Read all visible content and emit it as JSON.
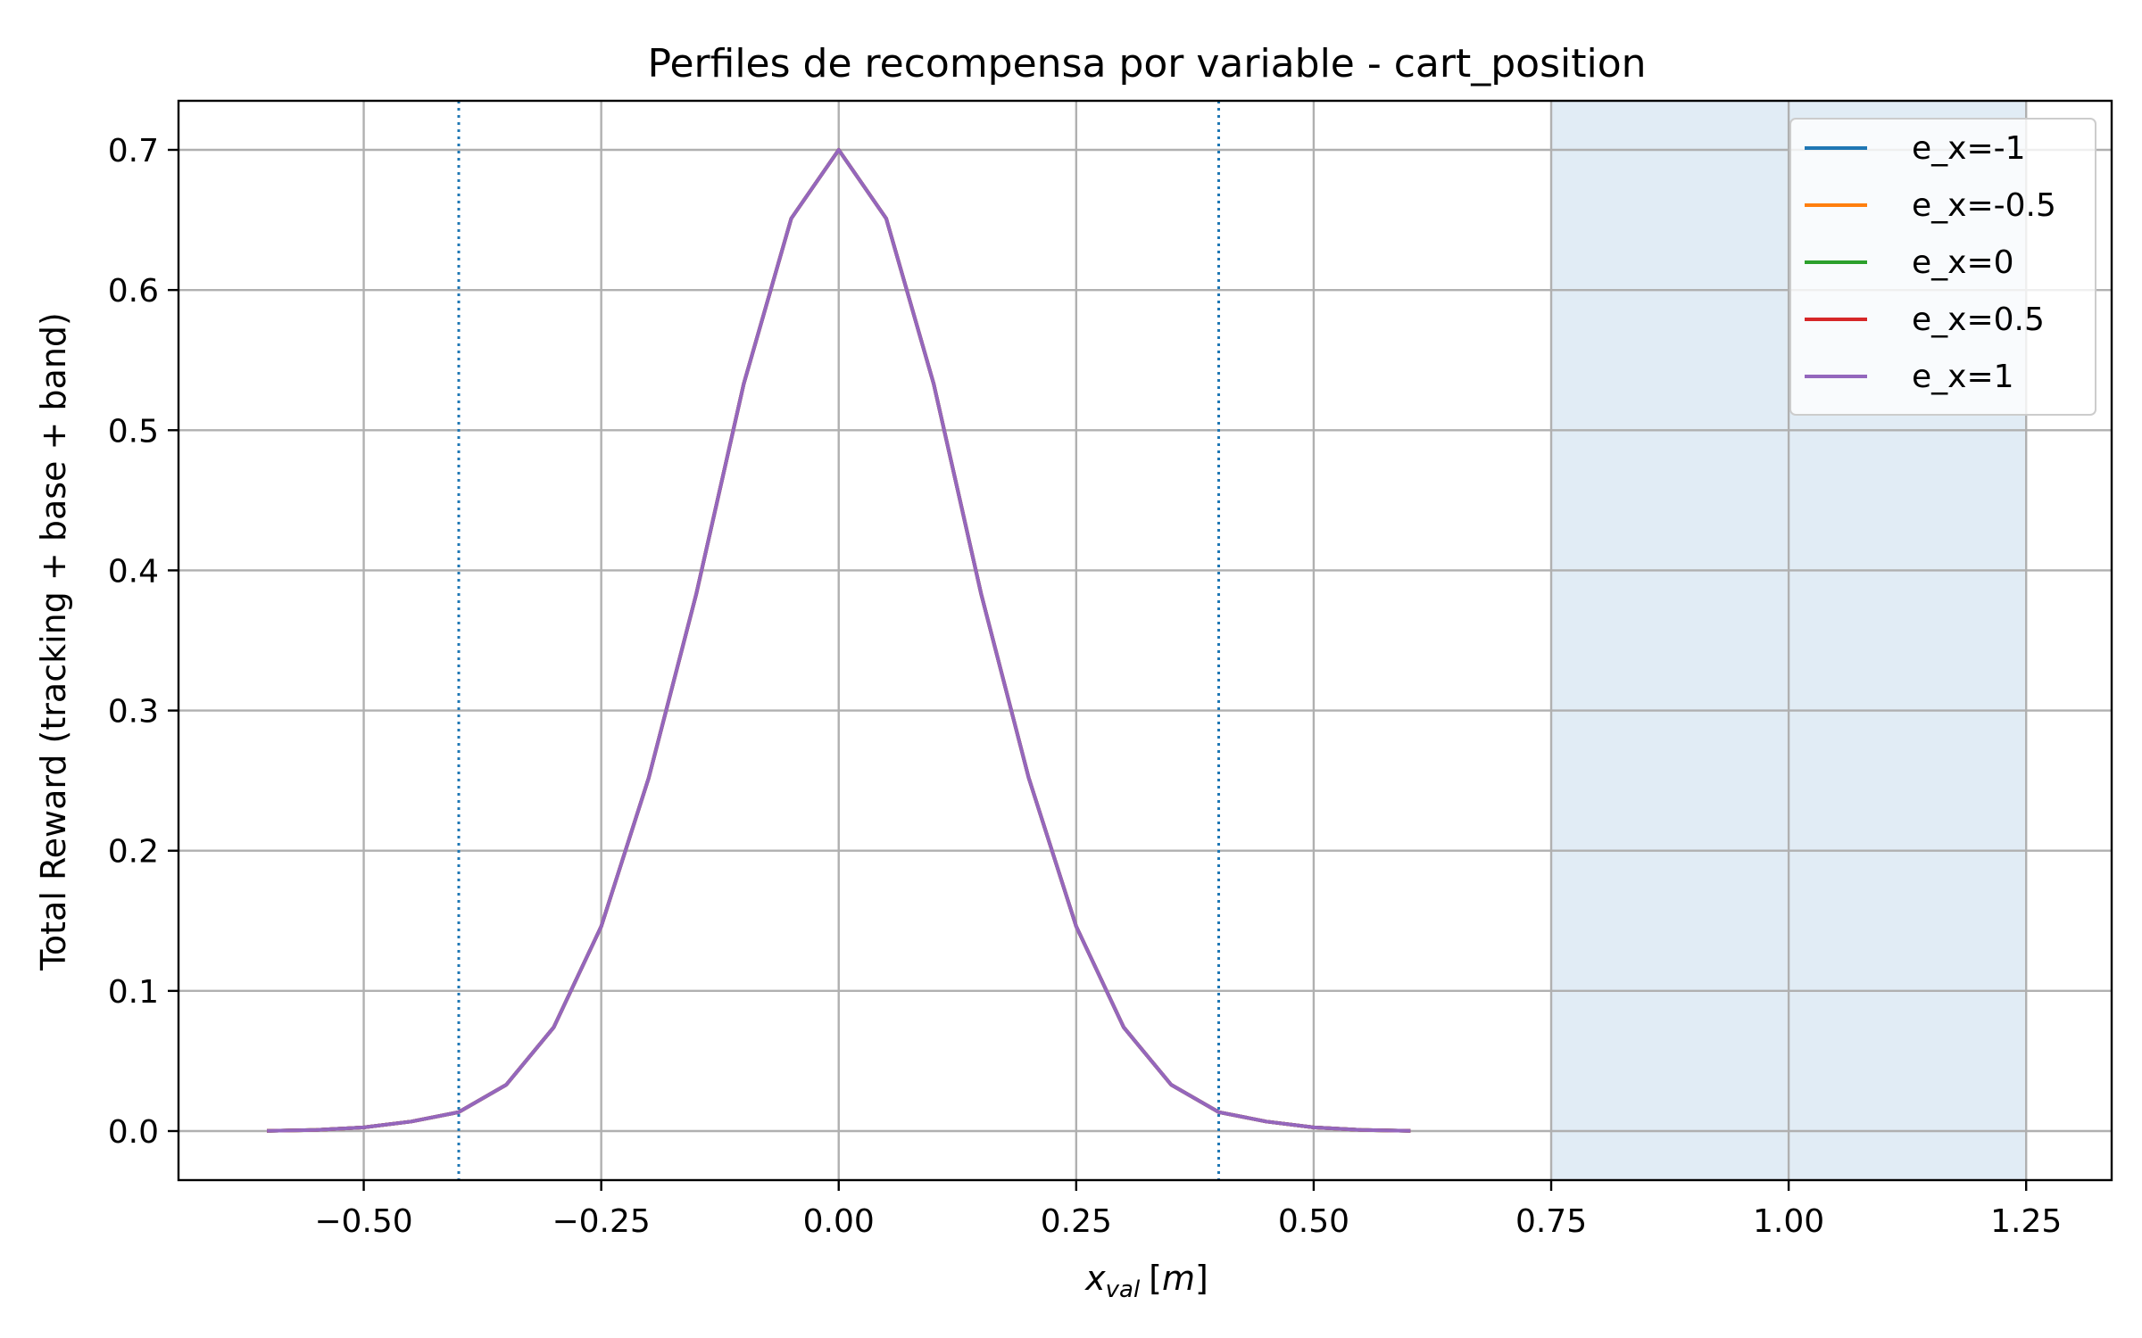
{
  "chart_data": {
    "type": "line",
    "title": "Perfiles de recompensa por variable - cart_position",
    "xlabel_base": "x",
    "xlabel_sub": "val",
    "xlabel_unit": "m",
    "ylabel": "Total Reward (tracking + base + band)",
    "xlim": [
      -0.695,
      1.34
    ],
    "ylim": [
      -0.035,
      0.735
    ],
    "xticks": [
      -0.5,
      -0.25,
      0.0,
      0.25,
      0.5,
      0.75,
      1.0,
      1.25
    ],
    "xtick_labels": [
      "−0.50",
      "−0.25",
      "0.00",
      "0.25",
      "0.50",
      "0.75",
      "1.00",
      "1.25"
    ],
    "yticks": [
      0.0,
      0.1,
      0.2,
      0.3,
      0.4,
      0.5,
      0.6,
      0.7
    ],
    "ytick_labels": [
      "0.0",
      "0.1",
      "0.2",
      "0.3",
      "0.4",
      "0.5",
      "0.6",
      "0.7"
    ],
    "grid": true,
    "legend_position": "top-right",
    "shaded_band": {
      "x_from": 0.75,
      "x_to": 1.25,
      "color": "#e1ecf5"
    },
    "vertical_dotted_lines": [
      {
        "x": -0.4,
        "color": "#1f77b4"
      },
      {
        "x": 0.4,
        "color": "#1f77b4"
      }
    ],
    "x": [
      -0.6,
      -0.55,
      -0.5,
      -0.45,
      -0.4,
      -0.35,
      -0.3,
      -0.25,
      -0.2,
      -0.15,
      -0.1,
      -0.05,
      0.0,
      0.05,
      0.1,
      0.15,
      0.2,
      0.25,
      0.3,
      0.35,
      0.4,
      0.45,
      0.5,
      0.55,
      0.6
    ],
    "series": [
      {
        "name": "e_x=-1",
        "color": "#1f77b4",
        "values": [
          0.0002,
          0.0008,
          0.0026,
          0.0068,
          0.0135,
          0.033,
          0.074,
          0.146,
          0.252,
          0.383,
          0.533,
          0.651,
          0.7,
          0.651,
          0.533,
          0.383,
          0.252,
          0.146,
          0.074,
          0.033,
          0.0135,
          0.0068,
          0.0026,
          0.0008,
          0.0002
        ]
      },
      {
        "name": "e_x=-0.5",
        "color": "#ff7f0e",
        "values": [
          0.0002,
          0.0008,
          0.0026,
          0.0068,
          0.0135,
          0.033,
          0.074,
          0.146,
          0.252,
          0.383,
          0.533,
          0.651,
          0.7,
          0.651,
          0.533,
          0.383,
          0.252,
          0.146,
          0.074,
          0.033,
          0.0135,
          0.0068,
          0.0026,
          0.0008,
          0.0002
        ]
      },
      {
        "name": "e_x=0",
        "color": "#2ca02c",
        "values": [
          0.0002,
          0.0008,
          0.0026,
          0.0068,
          0.0135,
          0.033,
          0.074,
          0.146,
          0.252,
          0.383,
          0.533,
          0.651,
          0.7,
          0.651,
          0.533,
          0.383,
          0.252,
          0.146,
          0.074,
          0.033,
          0.0135,
          0.0068,
          0.0026,
          0.0008,
          0.0002
        ]
      },
      {
        "name": "e_x=0.5",
        "color": "#d62728",
        "values": [
          0.0002,
          0.0008,
          0.0026,
          0.0068,
          0.0135,
          0.033,
          0.074,
          0.146,
          0.252,
          0.383,
          0.533,
          0.651,
          0.7,
          0.651,
          0.533,
          0.383,
          0.252,
          0.146,
          0.074,
          0.033,
          0.0135,
          0.0068,
          0.0026,
          0.0008,
          0.0002
        ]
      },
      {
        "name": "e_x=1",
        "color": "#9467bd",
        "values": [
          0.0002,
          0.0008,
          0.0026,
          0.0068,
          0.0135,
          0.033,
          0.074,
          0.146,
          0.252,
          0.383,
          0.533,
          0.651,
          0.7,
          0.651,
          0.533,
          0.383,
          0.252,
          0.146,
          0.074,
          0.033,
          0.0135,
          0.0068,
          0.0026,
          0.0008,
          0.0002
        ]
      }
    ]
  }
}
